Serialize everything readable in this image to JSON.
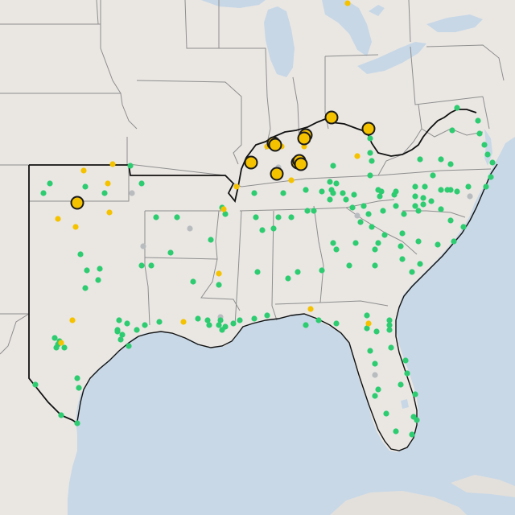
{
  "map": {
    "colors": {
      "land": "#eae7e3",
      "water": "#c8d8e6",
      "lakes": "#c7d7e6",
      "state_border": "#8e8e8e",
      "region_outline": "#111111",
      "green_marker": "#2ecc71",
      "yellow_marker": "#f5c200",
      "gray_marker": "#b8bcbf",
      "large_marker_stroke": "#1a1a1a"
    },
    "marker_categories": [
      "green",
      "yellow",
      "gray",
      "yellow-large"
    ],
    "marker_counts": {
      "green": 170,
      "yellow": 20,
      "gray": 8,
      "yellow-large": 12
    }
  }
}
